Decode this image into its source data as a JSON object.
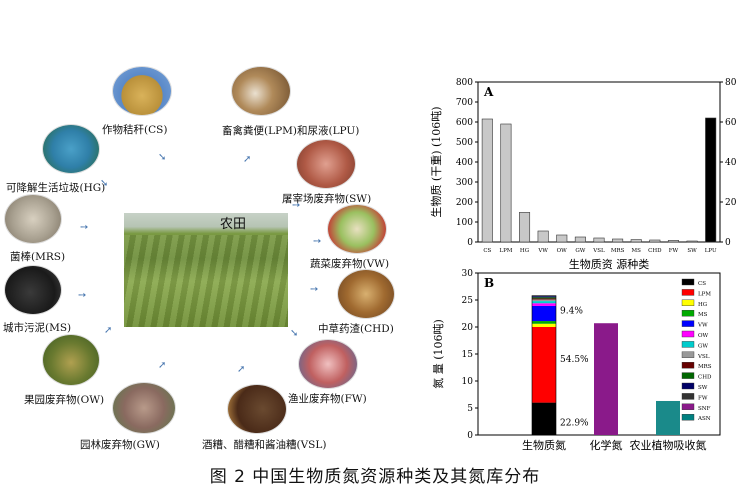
{
  "center_label": "农田",
  "sources": [
    {
      "key": "cs",
      "label": "作物秸秆(CS)",
      "color": "#c9a04a"
    },
    {
      "key": "lpm",
      "label": "畜禽粪便(LPM)和尿液(LPU)",
      "color": "#8a5a2c"
    },
    {
      "key": "hg",
      "label": "可降解生活垃圾(HG)",
      "color": "#2f7fa8"
    },
    {
      "key": "sw",
      "label": "屠宰场废弃物(SW)",
      "color": "#b05a46"
    },
    {
      "key": "mrs",
      "label": "菌棒(MRS)",
      "color": "#9a9080"
    },
    {
      "key": "vw",
      "label": "蔬菜废弃物(VW)",
      "color": "#7aa050"
    },
    {
      "key": "ms",
      "label": "城市污泥(MS)",
      "color": "#2a2a2a"
    },
    {
      "key": "chd",
      "label": "中草药渣(CHD)",
      "color": "#8a5a2a"
    },
    {
      "key": "ow",
      "label": "果园废弃物(OW)",
      "color": "#6a7a30"
    },
    {
      "key": "fw",
      "label": "渔业废弃物(FW)",
      "color": "#b05050"
    },
    {
      "key": "gw",
      "label": "园林废弃物(GW)",
      "color": "#8a6a60"
    },
    {
      "key": "vsl",
      "label": "酒糟、醋糟和酱油糟(VSL)",
      "color": "#5a3a22"
    }
  ],
  "caption": "图 2  中国生物质氮资源种类及其氮库分布",
  "chart_data": [
    {
      "type": "bar",
      "panel": "A",
      "ylabel": "生物质 (干重) (106吨)",
      "xlabel": "生物质资 源种类",
      "categories": [
        "CS",
        "LPM",
        "HG",
        "VW",
        "OW",
        "GW",
        "VSL",
        "MRS",
        "MS",
        "CHD",
        "FW",
        "SW",
        "LPU"
      ],
      "values": [
        615,
        590,
        148,
        55,
        35,
        25,
        20,
        15,
        12,
        10,
        8,
        5,
        620
      ],
      "ylim": [
        0,
        800
      ],
      "yticks": [
        "0",
        "100",
        "200",
        "300",
        "400",
        "500",
        "600",
        "700",
        "800"
      ],
      "y2ticks": [
        "0",
        "20",
        "40",
        "60",
        "80"
      ],
      "bar_color": "#c8c8c8",
      "highlight_color": "#000000"
    },
    {
      "type": "bar",
      "panel": "B",
      "stacked": true,
      "ylabel": "氮 量 (106吨)",
      "categories": [
        "生物质氮",
        "化学氮",
        "农业植物吸收氮"
      ],
      "ylim": [
        0,
        30
      ],
      "yticks": [
        "0",
        "5",
        "10",
        "15",
        "20",
        "25",
        "30"
      ],
      "stack": [
        {
          "name": "CS",
          "color": "#000000",
          "value": 6.0
        },
        {
          "name": "LPM",
          "color": "#ff0000",
          "value": 14.0
        },
        {
          "name": "HG",
          "color": "#ffff00",
          "value": 0.6
        },
        {
          "name": "MS",
          "color": "#00aa00",
          "value": 0.5
        },
        {
          "name": "VW",
          "color": "#0000ff",
          "value": 2.8
        },
        {
          "name": "OW",
          "color": "#ff00ff",
          "value": 0.5
        },
        {
          "name": "GW",
          "color": "#00cccc",
          "value": 0.4
        },
        {
          "name": "VSL",
          "color": "#999999",
          "value": 0.3
        },
        {
          "name": "MRS",
          "color": "#660000",
          "value": 0.2
        },
        {
          "name": "CHD",
          "color": "#006600",
          "value": 0.2
        },
        {
          "name": "SW",
          "color": "#000066",
          "value": 0.2
        },
        {
          "name": "FW",
          "color": "#333333",
          "value": 0.1
        },
        {
          "name": "SNF",
          "color": "#8a1a8a",
          "value": 0.0
        },
        {
          "name": "ASN",
          "color": "#008080",
          "value": 0.0
        }
      ],
      "chemical": {
        "value": 20.7,
        "color": "#8a1a8a"
      },
      "plant_uptake": {
        "value": 6.3,
        "color": "#1a8a8a"
      },
      "percent_labels": [
        "9.4%",
        "54.5%",
        "22.9%"
      ],
      "legend": [
        "CS",
        "LPM",
        "HG",
        "MS",
        "VW",
        "OW",
        "GW",
        "VSL",
        "MRS",
        "CHD",
        "SW",
        "FW",
        "SNF",
        "ASN"
      ]
    }
  ]
}
